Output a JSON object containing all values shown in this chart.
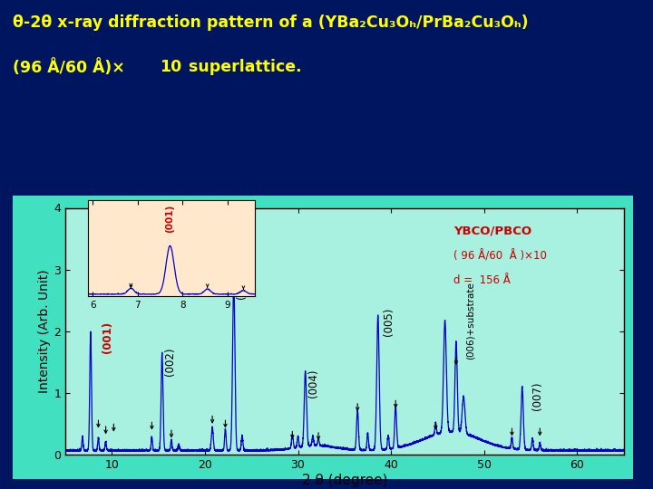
{
  "bg_color": "#001560",
  "cyan_border": "#40e0c0",
  "plot_bg": "#a8f0e0",
  "xlabel": "2 θ (degree)",
  "ylabel": "Intensity (Arb. Unit)",
  "xlim": [
    5,
    65
  ],
  "ylim": [
    0,
    4.0
  ],
  "xticks": [
    10,
    20,
    30,
    40,
    50,
    60
  ],
  "yticks": [
    0,
    1,
    2,
    3,
    4
  ],
  "line_color": "#0000cc",
  "title_color": "#ffff00",
  "red_label_color": "#cc0000",
  "legend_color": "#cc0000",
  "inset_bg": "#ffe8cc",
  "title1": "θ-2θ x-ray diffraction pattern of a (YBa₂Cu₃Oₕ/PrBa₂Cu₃Oₕ)",
  "title2a": "(96 Å/60 Å)×",
  "title2b": "10",
  "title2c": " superlattice."
}
